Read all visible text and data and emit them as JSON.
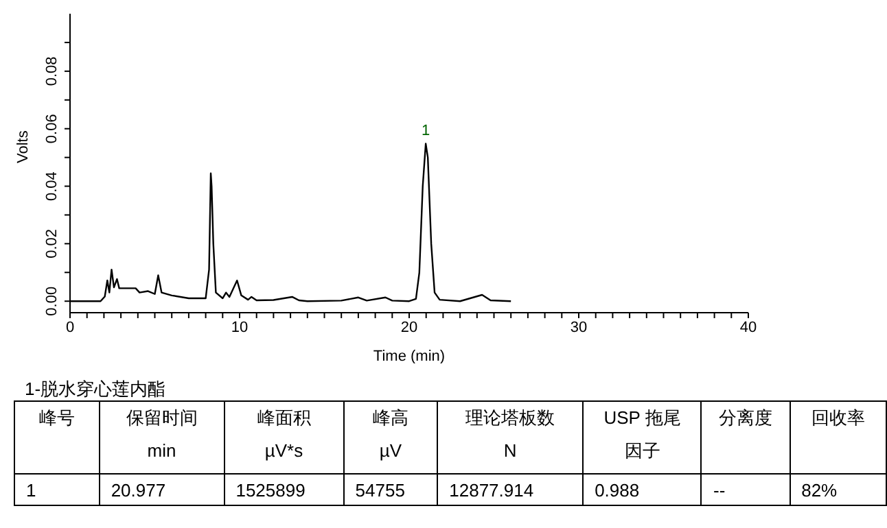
{
  "chart_data": {
    "type": "line",
    "xlabel": "Time (min)",
    "ylabel": "Volts",
    "x": [
      0,
      1.8,
      2.05,
      2.2,
      2.32,
      2.45,
      2.59,
      2.77,
      2.9,
      3.4,
      3.87,
      4.1,
      4.6,
      5.0,
      5.2,
      5.4,
      6,
      7,
      8.0,
      8.2,
      8.3,
      8.35,
      8.45,
      8.6,
      9,
      9.2,
      9.4,
      9.85,
      10.1,
      10.5,
      10.7,
      11,
      12,
      13.1,
      13.5,
      14,
      16,
      17,
      17.5,
      18.6,
      19,
      20,
      20.4,
      20.6,
      20.8,
      20.977,
      21.1,
      21.3,
      21.5,
      21.8,
      23,
      24.3,
      24.8,
      26
    ],
    "series": [
      {
        "color": "#000000",
        "values": [
          0,
          0,
          0.0016,
          0.0072,
          0.003,
          0.011,
          0.0048,
          0.0077,
          0.0045,
          0.0045,
          0.0045,
          0.003,
          0.0035,
          0.0025,
          0.009,
          0.003,
          0.002,
          0.001,
          0.001,
          0.011,
          0.0445,
          0.04,
          0.02,
          0.003,
          0.001,
          0.003,
          0.0015,
          0.0072,
          0.002,
          0.0005,
          0.0015,
          0.0003,
          0.0004,
          0.0015,
          0.0003,
          0,
          0.0002,
          0.0013,
          0.0002,
          0.0013,
          0.0002,
          0,
          0.0008,
          0.01,
          0.04,
          0.0548,
          0.05,
          0.02,
          0.003,
          0.0005,
          0,
          0.0022,
          0.0003,
          0
        ]
      }
    ],
    "xlim": [
      0,
      40
    ],
    "xticks": [
      0,
      {
        "value": 1,
        "label": null
      },
      {
        "value": 2,
        "label": null
      },
      {
        "value": 3,
        "label": null
      },
      {
        "value": 4,
        "label": null
      },
      {
        "value": 5,
        "label": null
      },
      {
        "value": 6,
        "label": null
      },
      {
        "value": 7,
        "label": null
      },
      {
        "value": 8,
        "label": null
      },
      {
        "value": 9,
        "label": null
      },
      10,
      {
        "value": 11,
        "label": null
      },
      {
        "value": 12,
        "label": null
      },
      {
        "value": 13,
        "label": null
      },
      {
        "value": 14,
        "label": null
      },
      {
        "value": 15,
        "label": null
      },
      {
        "value": 16,
        "label": null
      },
      {
        "value": 17,
        "label": null
      },
      {
        "value": 18,
        "label": null
      },
      {
        "value": 19,
        "label": null
      },
      20,
      {
        "value": 21,
        "label": null
      },
      {
        "value": 22,
        "label": null
      },
      {
        "value": 23,
        "label": null
      },
      {
        "value": 24,
        "label": null
      },
      {
        "value": 25,
        "label": null
      },
      {
        "value": 26,
        "label": null
      },
      {
        "value": 27,
        "label": null
      },
      {
        "value": 28,
        "label": null
      },
      {
        "value": 29,
        "label": null
      },
      30,
      {
        "value": 31,
        "label": null
      },
      {
        "value": 32,
        "label": null
      },
      {
        "value": 33,
        "label": null
      },
      {
        "value": 34,
        "label": null
      },
      {
        "value": 35,
        "label": null
      },
      {
        "value": 36,
        "label": null
      },
      {
        "value": 37,
        "label": null
      },
      {
        "value": 38,
        "label": null
      },
      {
        "value": 39,
        "label": null
      },
      40
    ],
    "ylim": [
      -0.004,
      0.1
    ],
    "yticks": [
      {
        "value": 0,
        "label": "0.00"
      },
      {
        "value": 0.01,
        "label": null
      },
      {
        "value": 0.02,
        "label": "0.02"
      },
      {
        "value": 0.03,
        "label": null
      },
      {
        "value": 0.04,
        "label": "0.04"
      },
      {
        "value": 0.05,
        "label": null
      },
      {
        "value": 0.06,
        "label": "0.06"
      },
      {
        "value": 0.07,
        "label": null
      },
      {
        "value": 0.08,
        "label": "0.08"
      },
      {
        "value": 0.09,
        "label": null
      }
    ],
    "grid": false,
    "legend": false,
    "marker": "none",
    "line_style": "solid",
    "annotations": [
      {
        "text": "1",
        "x": 20.977,
        "y": 0.0548
      },
      "1-脱水穿心莲内酯",
      "峰号",
      "保留时间\nmin",
      "峰面积\nµV*s",
      "峰高\nµV",
      "理论塔板数\nN",
      "USP 拖尾因子",
      "分离度",
      "回收率",
      "1",
      "20.977",
      "1525899",
      "54755",
      "12877.914",
      "0.988",
      "--",
      "82%"
    ]
  }
}
